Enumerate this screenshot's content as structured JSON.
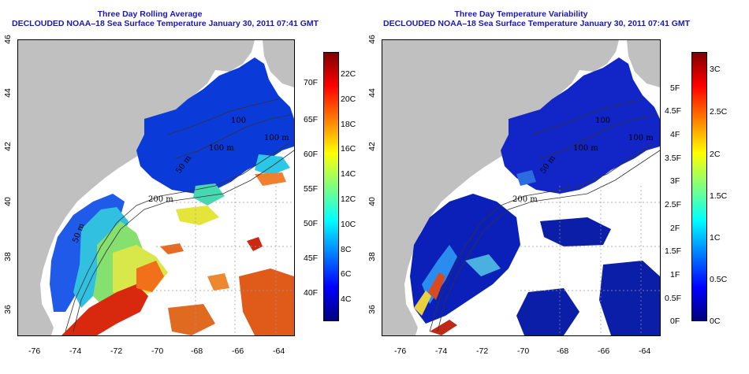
{
  "panels": [
    {
      "id": "left",
      "title_line1": "Three Day Rolling Average",
      "title_line2": "DECLOUDED NOAA–18 Sea Surface Temperature January 30, 2011 07:41 GMT",
      "x_ticks": [
        "-76",
        "-74",
        "-72",
        "-70",
        "-68",
        "-66",
        "-64"
      ],
      "y_ticks": [
        "36",
        "38",
        "40",
        "42",
        "44",
        "46"
      ],
      "contour_labels": [
        "100",
        "100 m",
        "100 m",
        "50 m",
        "200 m",
        "50 m"
      ],
      "colorbar": {
        "left_labels": [
          "22C",
          "20C",
          "18C",
          "16C",
          "14C",
          "12C",
          "10C",
          "8C",
          "6C",
          "4C"
        ],
        "right_labels": [
          "70F",
          "65F",
          "60F",
          "55F",
          "50F",
          "45F",
          "40F"
        ],
        "colors": [
          "#00007f",
          "#0000ff",
          "#007fff",
          "#00ffff",
          "#7fff7f",
          "#ffff00",
          "#ff7f00",
          "#ff0000",
          "#7f0000"
        ]
      }
    },
    {
      "id": "right",
      "title_line1": "Three Day Temperature Variability",
      "title_line2": "DECLOUDED NOAA–18 Sea Surface Temperature January 30, 2011 07:41 GMT",
      "x_ticks": [
        "-76",
        "-74",
        "-72",
        "-70",
        "-68",
        "-66",
        "-64"
      ],
      "y_ticks": [
        "36",
        "38",
        "40",
        "42",
        "44",
        "46"
      ],
      "contour_labels": [
        "100",
        "100 m",
        "100 m",
        "50 m",
        "200 m"
      ],
      "colorbar": {
        "left_labels": [
          "5F",
          "4.5F",
          "4F",
          "3.5F",
          "3F",
          "2.5F",
          "2F",
          "1.5F",
          "1F",
          "0.5F",
          "0F"
        ],
        "right_labels": [
          "3C",
          "2.5C",
          "2C",
          "1.5C",
          "1C",
          "0.5C",
          "0C"
        ],
        "colors": [
          "#00007f",
          "#0000ff",
          "#007fff",
          "#00ffff",
          "#7fff7f",
          "#ffff00",
          "#ff7f00",
          "#ff0000",
          "#7f0000"
        ]
      }
    }
  ]
}
